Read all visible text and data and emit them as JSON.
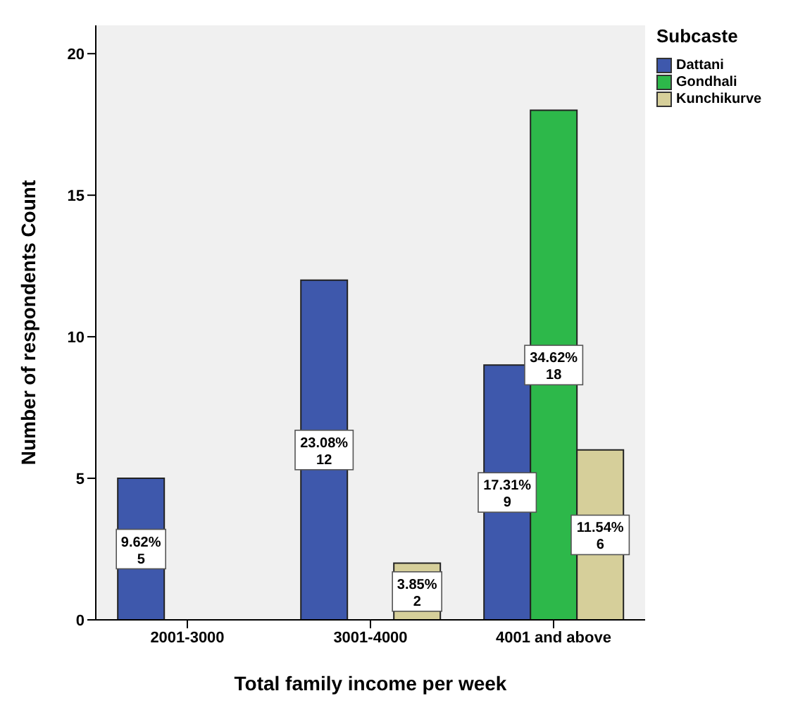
{
  "chart_data": {
    "type": "bar",
    "xlabel": "Total family income per week",
    "ylabel": "Number of respondents Count",
    "legend_title": "Subcaste",
    "categories": [
      "2001-3000",
      "3001-4000",
      "4001 and above"
    ],
    "series": [
      {
        "name": "Dattani",
        "color": "#3e58ac",
        "values": [
          5,
          12,
          9
        ],
        "value_labels": [
          "9.62%\n5",
          "23.08%\n12",
          "17.31%\n9"
        ]
      },
      {
        "name": "Gondhali",
        "color": "#2db84a",
        "values": [
          0,
          0,
          18
        ],
        "value_labels": [
          null,
          null,
          "34.62%\n18"
        ]
      },
      {
        "name": "Kunchikurve",
        "color": "#d6cf9a",
        "values": [
          0,
          2,
          6
        ],
        "value_labels": [
          null,
          "3.85%\n2",
          "11.54%\n6"
        ]
      }
    ],
    "ylim": [
      0,
      21
    ],
    "yticks": [
      0,
      5,
      10,
      15,
      20
    ],
    "grid": false,
    "legend": "top right"
  }
}
